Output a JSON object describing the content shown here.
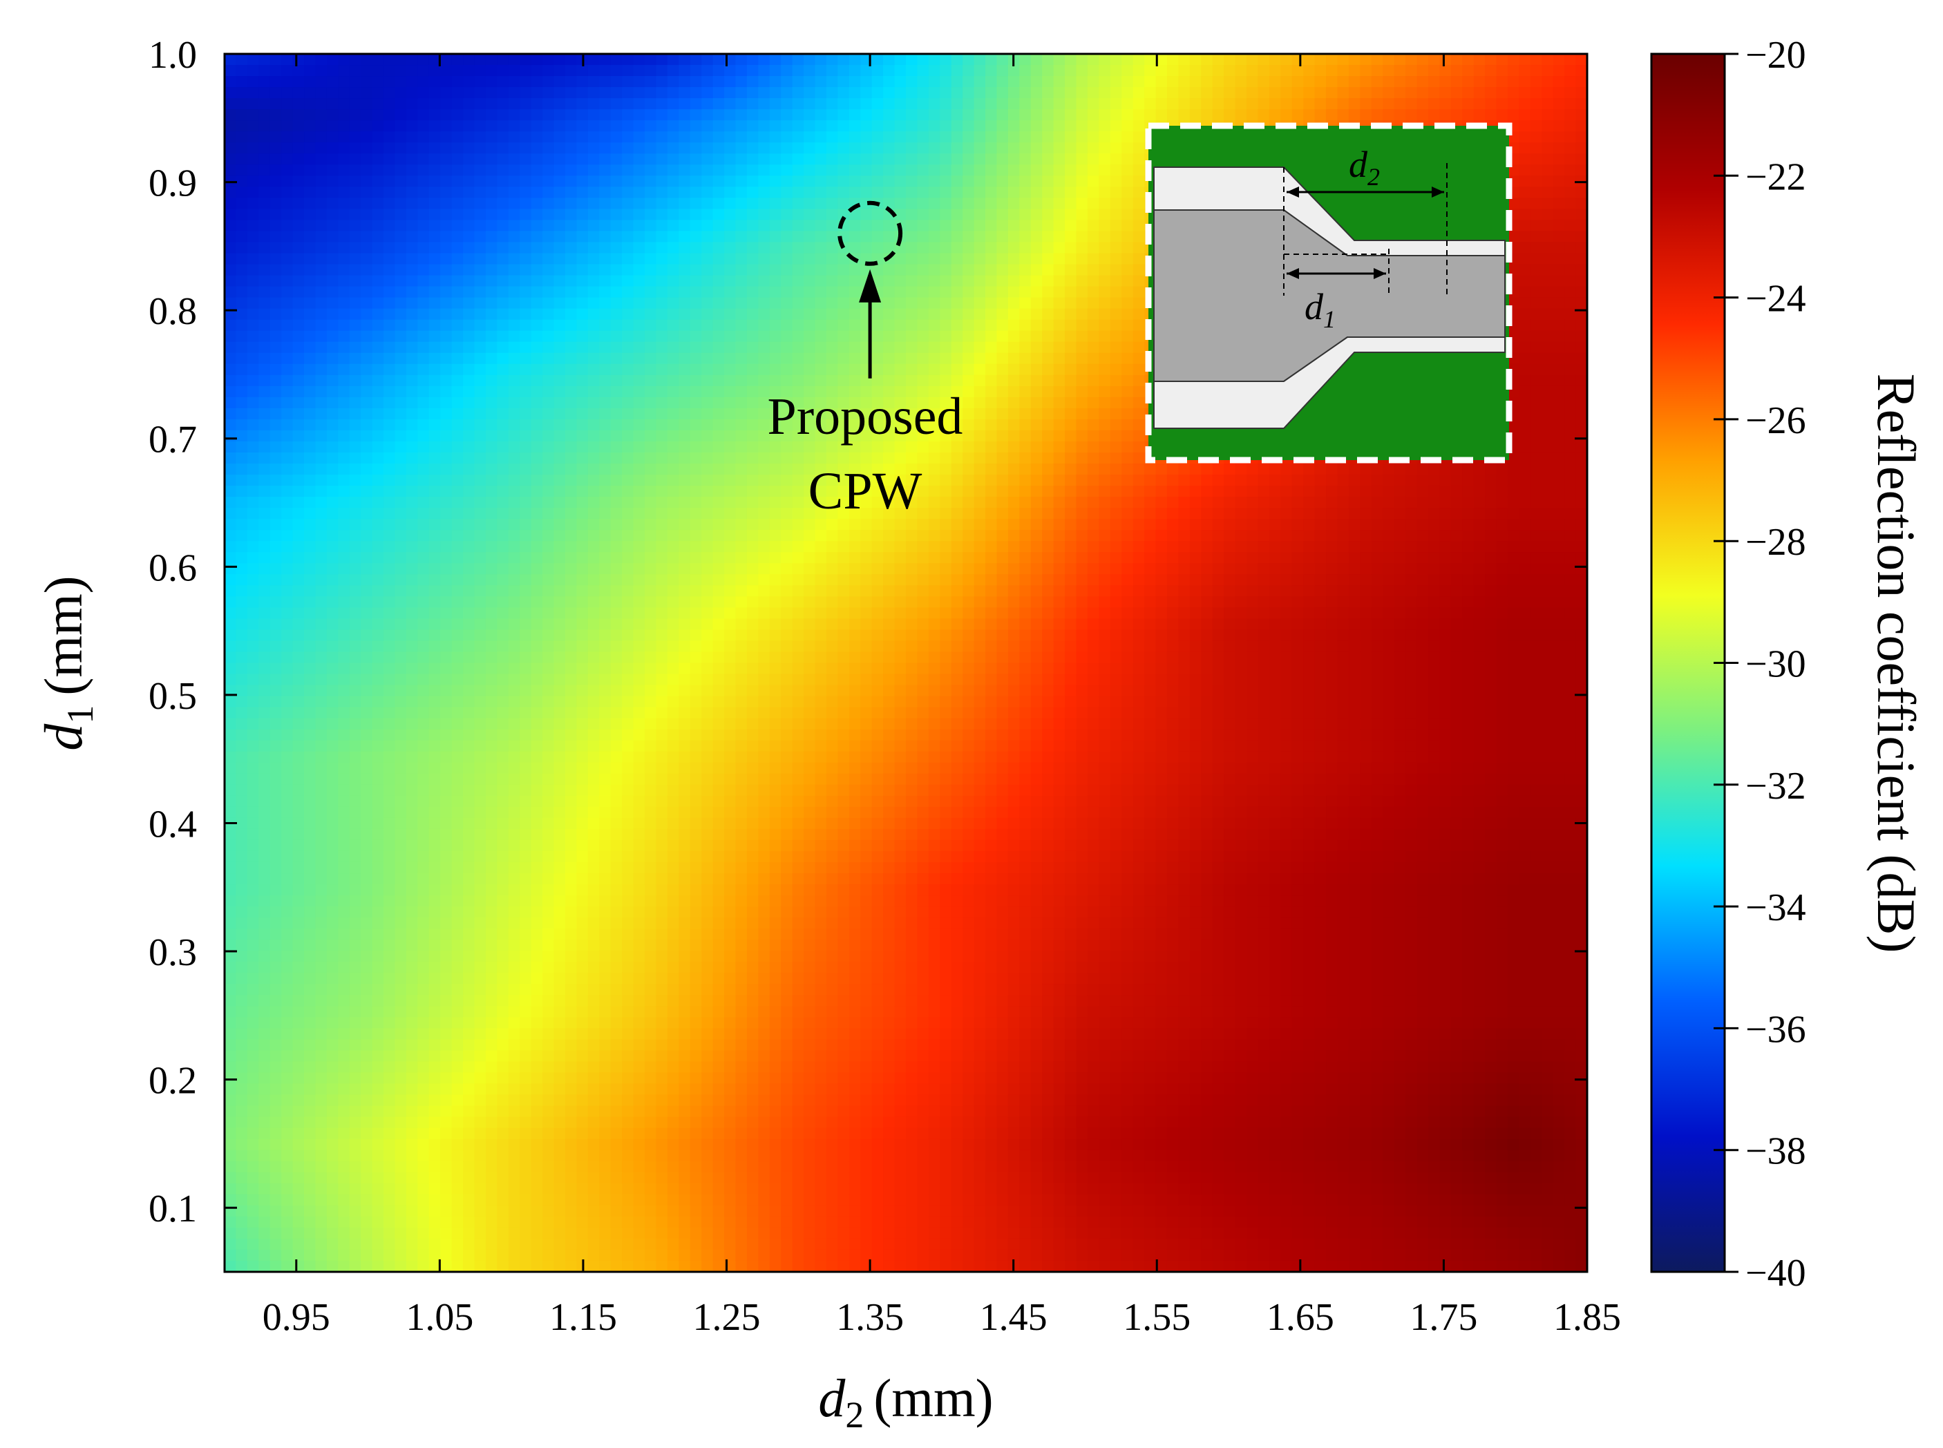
{
  "chart_data": {
    "type": "heatmap",
    "x": {
      "symbol": "d",
      "subscript": "2",
      "unit": "(mm)",
      "range": [
        0.9,
        1.85
      ],
      "ticks": [
        0.95,
        1.05,
        1.15,
        1.25,
        1.35,
        1.45,
        1.55,
        1.65,
        1.75,
        1.85
      ],
      "tick_labels": [
        "0.95",
        "1.05",
        "1.15",
        "1.25",
        "1.35",
        "1.45",
        "1.55",
        "1.65",
        "1.75",
        "1.85"
      ]
    },
    "y": {
      "symbol": "d",
      "subscript": "1",
      "unit": "(mm)",
      "range": [
        0.05,
        1.0
      ],
      "ticks": [
        0.1,
        0.2,
        0.3,
        0.4,
        0.5,
        0.6,
        0.7,
        0.8,
        0.9,
        1.0
      ],
      "tick_labels": [
        "0.1",
        "0.2",
        "0.3",
        "0.4",
        "0.5",
        "0.6",
        "0.7",
        "0.8",
        "0.9",
        "1.0"
      ]
    },
    "colorbar": {
      "title": "Reflection coefficient (dB)",
      "range": [
        -40,
        -20
      ],
      "ticks": [
        -20,
        -22,
        -24,
        -26,
        -28,
        -30,
        -32,
        -34,
        -36,
        -38,
        -40
      ],
      "tick_labels": [
        "−20",
        "−22",
        "−24",
        "−26",
        "−28",
        "−30",
        "−32",
        "−34",
        "−36",
        "−38",
        "−40"
      ],
      "colormap": [
        "#0d1a5e",
        "#0010c8",
        "#0060ff",
        "#00e0ff",
        "#7cf080",
        "#f2ff20",
        "#ffa000",
        "#ff2a00",
        "#b00000",
        "#6a0000"
      ]
    },
    "grid": {
      "d2": [
        0.9,
        1.0,
        1.1,
        1.2,
        1.3,
        1.4,
        1.5,
        1.6,
        1.7,
        1.8,
        1.85
      ],
      "d1": [
        0.05,
        0.15,
        0.25,
        0.35,
        0.45,
        0.55,
        0.65,
        0.75,
        0.85,
        0.95,
        1.0
      ],
      "values_dB": [
        [
          -32,
          -30,
          -28,
          -27,
          -25,
          -24,
          -23,
          -22.5,
          -22,
          -21.5,
          -21
        ],
        [
          -31,
          -29.5,
          -28,
          -26.5,
          -25,
          -24,
          -22.5,
          -22,
          -21.5,
          -20.5,
          -21
        ],
        [
          -31.5,
          -30.5,
          -29,
          -27.5,
          -25.5,
          -24.5,
          -23,
          -22.5,
          -22,
          -21.5,
          -21.5
        ],
        [
          -32,
          -31,
          -29.5,
          -28,
          -26,
          -24.5,
          -23.5,
          -22.5,
          -22,
          -21.5,
          -21.5
        ],
        [
          -32,
          -31,
          -30,
          -28.5,
          -27,
          -25.5,
          -24,
          -23,
          -22.5,
          -22,
          -22
        ],
        [
          -33,
          -32,
          -31,
          -29.5,
          -28,
          -26.5,
          -24.5,
          -23,
          -22.5,
          -22,
          -22
        ],
        [
          -34,
          -33,
          -32,
          -30.5,
          -29.5,
          -28,
          -25.5,
          -24,
          -23,
          -22.5,
          -22.5
        ],
        [
          -36,
          -34.5,
          -33,
          -32,
          -31,
          -29.5,
          -27,
          -25.5,
          -23.5,
          -22.5,
          -22.5
        ],
        [
          -37.5,
          -36.5,
          -35,
          -33.5,
          -32,
          -31,
          -28.5,
          -26.5,
          -24,
          -23,
          -23
        ],
        [
          -38.5,
          -38,
          -37,
          -35.5,
          -34,
          -32.5,
          -29.5,
          -27.5,
          -25.5,
          -24.5,
          -24
        ],
        [
          -37,
          -38,
          -38,
          -37.5,
          -35,
          -33,
          -30,
          -28,
          -26.5,
          -25,
          -24.5
        ]
      ]
    },
    "annotations": {
      "proposed": {
        "line1": "Proposed",
        "line2": "CPW",
        "d2": 1.35,
        "d1": 0.86
      }
    },
    "inset": {
      "description_labels": {
        "top": "d",
        "top_sub": "2",
        "bottom": "d",
        "bottom_sub": "1"
      }
    }
  }
}
